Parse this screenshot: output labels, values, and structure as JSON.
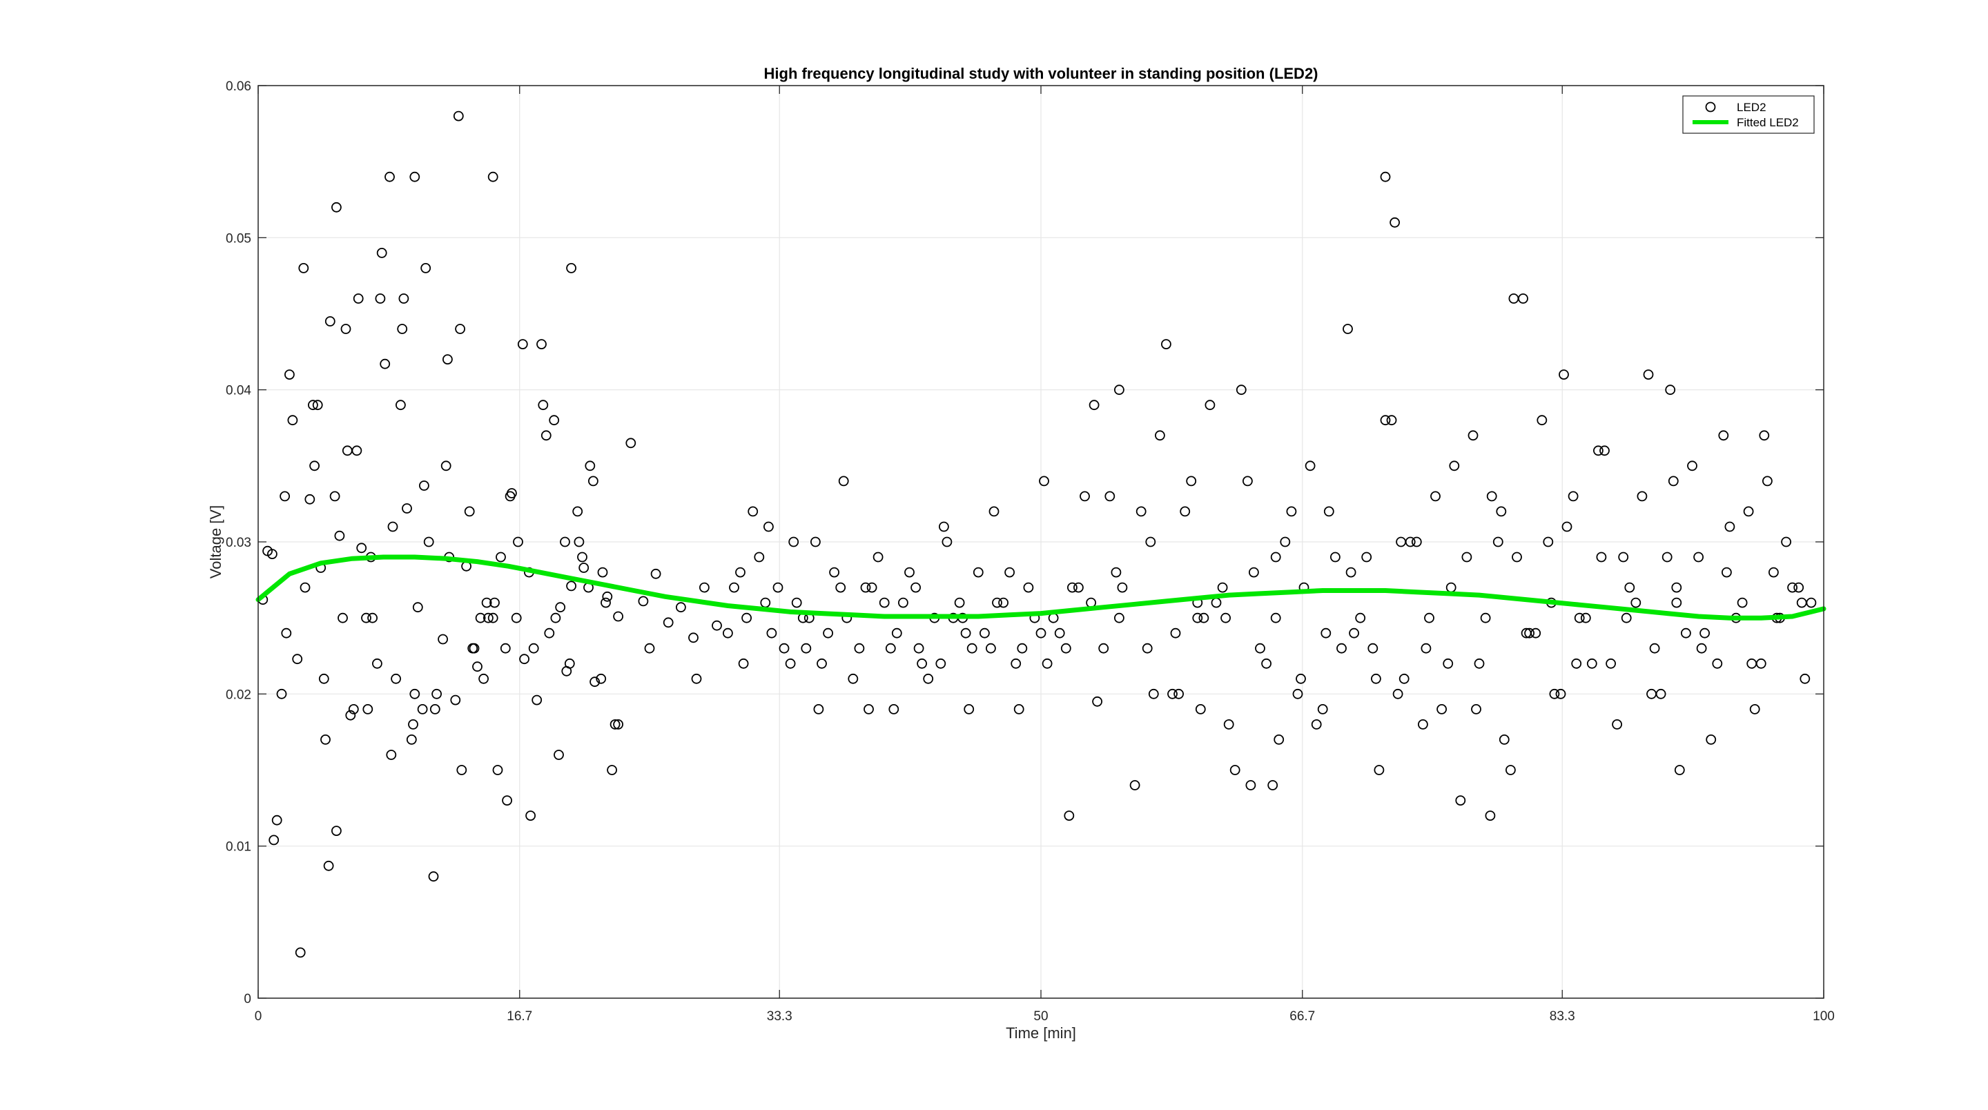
{
  "chart_data": {
    "type": "scatter",
    "title": "High frequency longitudinal study with volunteer in standing position (LED2)",
    "xlabel": "Time [min]",
    "ylabel": "Voltage [V]",
    "xlim": [
      0,
      100
    ],
    "ylim": [
      0,
      0.06
    ],
    "xticks": [
      0,
      16.7,
      33.3,
      50,
      66.7,
      83.3,
      100
    ],
    "xtick_labels": [
      "0",
      "16.7",
      "33.3",
      "50",
      "66.7",
      "83.3",
      "100"
    ],
    "yticks": [
      0,
      0.01,
      0.02,
      0.03,
      0.04,
      0.05,
      0.06
    ],
    "ytick_labels": [
      "0",
      "0.01",
      "0.02",
      "0.03",
      "0.04",
      "0.05",
      "0.06"
    ],
    "grid": true,
    "legend_position": "top-right",
    "colors": {
      "points": "#000000",
      "fit": "#00e600",
      "grid": "#e6e6e6",
      "axes": "#262626"
    },
    "series": [
      {
        "name": "LED2",
        "kind": "scatter",
        "marker": "open-circle",
        "x": [
          0.3,
          0.9,
          1.8,
          2.5,
          3.3,
          4.0,
          4.6,
          5.2,
          5.9,
          6.6,
          7.3,
          8.1,
          8.8,
          9.5,
          10.2,
          10.9,
          11.8,
          12.6,
          13.3,
          14.0,
          14.7,
          15.5,
          16.2,
          17.0,
          17.8,
          18.6,
          19.3,
          20.0,
          20.8,
          21.5,
          22.3,
          23.0,
          23.8,
          24.6,
          25.4,
          26.2,
          27.0,
          27.8,
          28.5,
          29.3,
          1.2,
          2.0,
          2.9,
          3.6,
          4.3,
          5.0,
          5.7,
          6.4,
          7.2,
          7.9,
          8.6,
          9.3,
          10.0,
          10.7,
          11.4,
          12.1,
          12.9,
          13.7,
          14.4,
          15.1,
          15.9,
          16.6,
          17.4,
          18.2,
          19.0,
          19.7,
          20.5,
          21.2,
          22.0,
          22.8,
          0.6,
          1.5,
          2.2,
          3.0,
          3.8,
          4.5,
          5.4,
          6.1,
          6.9,
          7.6,
          8.4,
          9.1,
          9.8,
          10.5,
          11.2,
          12.0,
          12.8,
          13.5,
          14.2,
          15.0,
          15.8,
          16.5,
          17.3,
          18.1,
          18.9,
          19.6,
          20.4,
          21.1,
          21.9,
          22.6,
          1.0,
          1.7,
          2.7,
          3.5,
          4.2,
          4.9,
          5.6,
          6.3,
          7.0,
          7.8,
          8.5,
          9.2,
          9.9,
          10.6,
          11.3,
          12.2,
          13.0,
          13.8,
          14.6,
          15.3,
          16.1,
          16.9,
          17.6,
          18.4,
          19.2,
          19.9,
          20.7,
          21.4,
          22.2,
          23.0,
          30.0,
          30.8,
          31.6,
          32.4,
          33.2,
          34.0,
          34.8,
          35.6,
          36.4,
          37.2,
          38.0,
          38.8,
          39.6,
          40.4,
          41.2,
          42.0,
          42.8,
          43.6,
          44.4,
          45.2,
          46.0,
          46.8,
          47.6,
          48.4,
          49.2,
          50.0,
          50.8,
          51.6,
          52.4,
          53.2,
          54.0,
          54.8,
          30.4,
          31.2,
          32.0,
          32.8,
          33.6,
          34.4,
          35.2,
          36.0,
          36.8,
          37.6,
          38.4,
          39.2,
          40.0,
          40.8,
          41.6,
          42.4,
          43.2,
          44.0,
          44.8,
          45.6,
          46.4,
          47.2,
          48.0,
          48.8,
          49.6,
          50.4,
          51.2,
          52.0,
          52.8,
          53.6,
          54.4,
          55.2,
          31.0,
          32.6,
          34.2,
          35.8,
          37.4,
          39.0,
          40.6,
          42.2,
          43.8,
          45.4,
          47.0,
          48.6,
          50.2,
          51.8,
          53.4,
          55.0,
          56.0,
          56.8,
          57.6,
          58.4,
          59.2,
          60.0,
          60.8,
          61.6,
          62.4,
          63.2,
          64.0,
          64.8,
          65.6,
          66.4,
          67.2,
          68.0,
          68.8,
          69.6,
          70.4,
          71.2,
          72.0,
          72.8,
          73.6,
          74.4,
          75.2,
          76.0,
          76.8,
          77.6,
          78.4,
          79.2,
          80.0,
          80.8,
          81.6,
          82.4,
          83.2,
          84.0,
          84.8,
          85.6,
          86.4,
          87.2,
          88.0,
          88.8,
          89.6,
          90.4,
          91.2,
          92.0,
          92.8,
          93.6,
          94.4,
          95.2,
          96.0,
          96.8,
          97.6,
          98.4,
          99.2,
          56.4,
          57.2,
          58.0,
          58.8,
          59.6,
          60.4,
          61.2,
          62.0,
          62.8,
          63.6,
          64.4,
          65.2,
          66.0,
          66.8,
          67.6,
          68.4,
          69.2,
          70.0,
          70.8,
          71.6,
          72.4,
          73.2,
          74.0,
          74.8,
          75.6,
          76.4,
          77.2,
          78.0,
          78.8,
          79.6,
          80.4,
          81.2,
          82.0,
          82.8,
          83.6,
          84.4,
          85.2,
          86.0,
          86.8,
          87.6,
          88.4,
          89.2,
          90.0,
          90.8,
          91.6,
          92.4,
          93.2,
          94.0,
          94.8,
          95.6,
          96.4,
          97.2,
          98.0,
          98.8,
          57.0,
          58.6,
          60.2,
          61.8,
          63.4,
          65.0,
          66.6,
          68.2,
          69.8,
          71.4,
          73.0,
          74.6,
          76.2,
          77.8,
          79.4,
          81.0,
          82.6,
          84.2,
          85.8,
          87.4,
          89.0,
          90.6,
          92.2,
          93.8,
          95.4,
          97.0,
          98.6,
          5.0,
          10.0,
          15.0,
          20.0,
          25.0,
          28.0,
          35.0,
          45.0,
          55.0,
          60.0,
          65.0,
          72.0,
          72.6,
          78.7,
          80.2,
          83.4,
          90.2,
          90.6,
          96.2
        ],
        "y": [
          0.0262,
          0.0292,
          0.024,
          0.0223,
          0.0328,
          0.0283,
          0.0445,
          0.0304,
          0.0186,
          0.0296,
          0.025,
          0.0417,
          0.021,
          0.0322,
          0.0257,
          0.03,
          0.0236,
          0.0196,
          0.0284,
          0.0218,
          0.025,
          0.029,
          0.0332,
          0.0223,
          0.0196,
          0.024,
          0.0257,
          0.0271,
          0.0283,
          0.0208,
          0.0264,
          0.0251,
          0.0365,
          0.0261,
          0.0279,
          0.0247,
          0.0257,
          0.0237,
          0.027,
          0.0245,
          0.0117,
          0.041,
          0.048,
          0.035,
          0.017,
          0.011,
          0.036,
          0.046,
          0.029,
          0.049,
          0.031,
          0.046,
          0.02,
          0.048,
          0.02,
          0.042,
          0.044,
          0.023,
          0.021,
          0.026,
          0.013,
          0.03,
          0.012,
          0.039,
          0.025,
          0.0215,
          0.03,
          0.035,
          0.028,
          0.018,
          0.0294,
          0.02,
          0.038,
          0.027,
          0.039,
          0.0087,
          0.025,
          0.019,
          0.025,
          0.022,
          0.054,
          0.039,
          0.017,
          0.019,
          0.008,
          0.035,
          0.058,
          0.032,
          0.025,
          0.025,
          0.023,
          0.025,
          0.028,
          0.043,
          0.038,
          0.03,
          0.032,
          0.027,
          0.021,
          0.015,
          0.0104,
          0.033,
          0.003,
          0.039,
          0.021,
          0.033,
          0.044,
          0.036,
          0.019,
          0.046,
          0.016,
          0.044,
          0.018,
          0.0337,
          0.019,
          0.029,
          0.015,
          0.023,
          0.026,
          0.015,
          0.033,
          0.043,
          0.023,
          0.037,
          0.016,
          0.022,
          0.029,
          0.034,
          0.026,
          0.018,
          0.024,
          0.028,
          0.032,
          0.026,
          0.027,
          0.022,
          0.025,
          0.03,
          0.024,
          0.027,
          0.021,
          0.027,
          0.029,
          0.023,
          0.026,
          0.027,
          0.021,
          0.022,
          0.025,
          0.024,
          0.028,
          0.023,
          0.026,
          0.022,
          0.027,
          0.024,
          0.025,
          0.023,
          0.027,
          0.026,
          0.023,
          0.028,
          0.027,
          0.025,
          0.029,
          0.024,
          0.023,
          0.026,
          0.025,
          0.022,
          0.028,
          0.025,
          0.023,
          0.027,
          0.026,
          0.024,
          0.028,
          0.022,
          0.025,
          0.03,
          0.026,
          0.023,
          0.024,
          0.026,
          0.028,
          0.023,
          0.025,
          0.022,
          0.024,
          0.027,
          0.033,
          0.0195,
          0.033,
          0.027,
          0.022,
          0.031,
          0.03,
          0.019,
          0.034,
          0.019,
          0.019,
          0.023,
          0.031,
          0.019,
          0.032,
          0.019,
          0.034,
          0.012,
          0.039,
          0.025,
          0.014,
          0.023,
          0.037,
          0.02,
          0.032,
          0.025,
          0.039,
          0.027,
          0.015,
          0.034,
          0.023,
          0.014,
          0.03,
          0.02,
          0.035,
          0.019,
          0.029,
          0.044,
          0.025,
          0.023,
          0.038,
          0.02,
          0.03,
          0.018,
          0.033,
          0.022,
          0.013,
          0.037,
          0.025,
          0.03,
          0.015,
          0.046,
          0.024,
          0.03,
          0.02,
          0.033,
          0.025,
          0.036,
          0.022,
          0.029,
          0.026,
          0.041,
          0.02,
          0.034,
          0.024,
          0.029,
          0.017,
          0.037,
          0.025,
          0.032,
          0.022,
          0.028,
          0.03,
          0.027,
          0.026,
          0.032,
          0.02,
          0.043,
          0.02,
          0.034,
          0.025,
          0.026,
          0.018,
          0.04,
          0.028,
          0.022,
          0.017,
          0.032,
          0.027,
          0.018,
          0.032,
          0.023,
          0.024,
          0.029,
          0.015,
          0.038,
          0.021,
          0.03,
          0.025,
          0.019,
          0.035,
          0.029,
          0.022,
          0.033,
          0.017,
          0.029,
          0.024,
          0.038,
          0.02,
          0.031,
          0.025,
          0.022,
          0.036,
          0.018,
          0.027,
          0.033,
          0.023,
          0.029,
          0.015,
          0.035,
          0.024,
          0.022,
          0.031,
          0.026,
          0.019,
          0.034,
          0.025,
          0.027,
          0.021,
          0.03,
          0.024,
          0.019,
          0.025,
          0.014,
          0.025,
          0.021,
          0.024,
          0.028,
          0.021,
          0.03,
          0.023,
          0.027,
          0.019,
          0.032,
          0.024,
          0.026,
          0.022,
          0.029,
          0.025,
          0.02,
          0.027,
          0.023,
          0.028,
          0.022,
          0.025,
          0.026,
          0.052,
          0.054,
          0.054,
          0.048,
          0.023,
          0.021,
          0.023,
          0.025,
          0.04,
          0.026,
          0.029,
          0.054,
          0.051,
          0.012,
          0.046,
          0.041,
          0.04,
          0.026,
          0.037
        ]
      },
      {
        "name": "Fitted LED2",
        "kind": "line",
        "x": [
          0,
          2,
          4,
          6,
          8,
          10,
          12,
          14,
          16,
          18,
          20,
          22,
          24,
          26,
          28,
          30,
          32,
          34,
          36,
          38,
          40,
          42,
          44,
          46,
          48,
          50,
          52,
          54,
          56,
          58,
          60,
          62,
          64,
          66,
          68,
          70,
          72,
          74,
          76,
          78,
          80,
          82,
          84,
          86,
          88,
          90,
          92,
          94,
          96,
          98,
          100
        ],
        "y": [
          0.0262,
          0.0279,
          0.0286,
          0.0289,
          0.029,
          0.029,
          0.0289,
          0.0287,
          0.0284,
          0.028,
          0.0276,
          0.0272,
          0.0268,
          0.0264,
          0.0261,
          0.0258,
          0.0256,
          0.0254,
          0.0253,
          0.0252,
          0.0251,
          0.0251,
          0.0251,
          0.0251,
          0.0252,
          0.0253,
          0.0255,
          0.0257,
          0.0259,
          0.0261,
          0.0263,
          0.0265,
          0.0266,
          0.0267,
          0.0268,
          0.0268,
          0.0268,
          0.0267,
          0.0266,
          0.0265,
          0.0263,
          0.0261,
          0.0259,
          0.0257,
          0.0255,
          0.0253,
          0.0251,
          0.025,
          0.025,
          0.0251,
          0.0256
        ]
      }
    ]
  }
}
